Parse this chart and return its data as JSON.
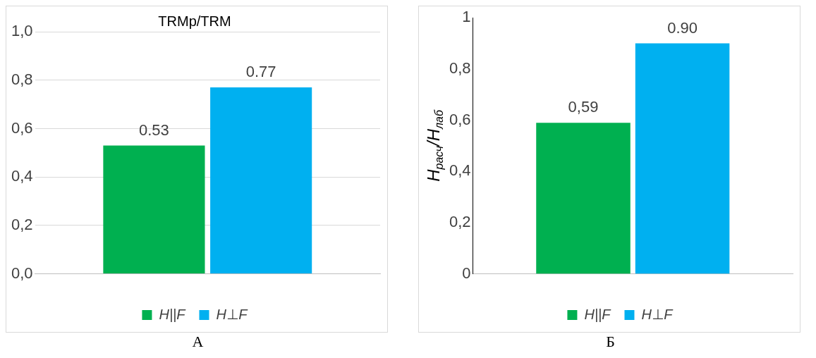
{
  "chart_data": [
    {
      "type": "bar",
      "title": "TRMp/TRM",
      "categories": [
        null
      ],
      "series": [
        {
          "name": "H||F",
          "color": "#00b050",
          "values": [
            0.53
          ]
        },
        {
          "name": "H⊥F",
          "color": "#00b0f0",
          "values": [
            0.77
          ]
        }
      ],
      "ylim": [
        0,
        1
      ],
      "yticks": [
        {
          "value": 0,
          "label": "0,0"
        },
        {
          "value": 0.2,
          "label": "0,2"
        },
        {
          "value": 0.4,
          "label": "0,4"
        },
        {
          "value": 0.6,
          "label": "0,6"
        },
        {
          "value": 0.8,
          "label": "0,8"
        },
        {
          "value": 1,
          "label": "1,0"
        }
      ],
      "grid": "y",
      "legend": "bottom",
      "data_labels": true,
      "annotations": [
        "А"
      ]
    },
    {
      "type": "bar",
      "ylabel": "H$_{расч}$/H$_{лаб}$",
      "categories": [
        null
      ],
      "series": [
        {
          "name": "H||F",
          "color": "#00b050",
          "values": [
            0.59
          ],
          "value_labels": [
            "0,59"
          ]
        },
        {
          "name": "H⊥F",
          "color": "#00b0f0",
          "values": [
            0.9
          ],
          "value_labels": [
            "0.90"
          ]
        }
      ],
      "ylim": [
        0,
        1
      ],
      "yticks": [
        0,
        {
          "value": 0.2,
          "label": "0,2"
        },
        {
          "value": 0.4,
          "label": "0,4"
        },
        {
          "value": 0.6,
          "label": "0,6"
        },
        {
          "value": 0.8,
          "label": "0,8"
        },
        1
      ],
      "legend": "bottom",
      "annotations": [
        "Б"
      ]
    }
  ]
}
